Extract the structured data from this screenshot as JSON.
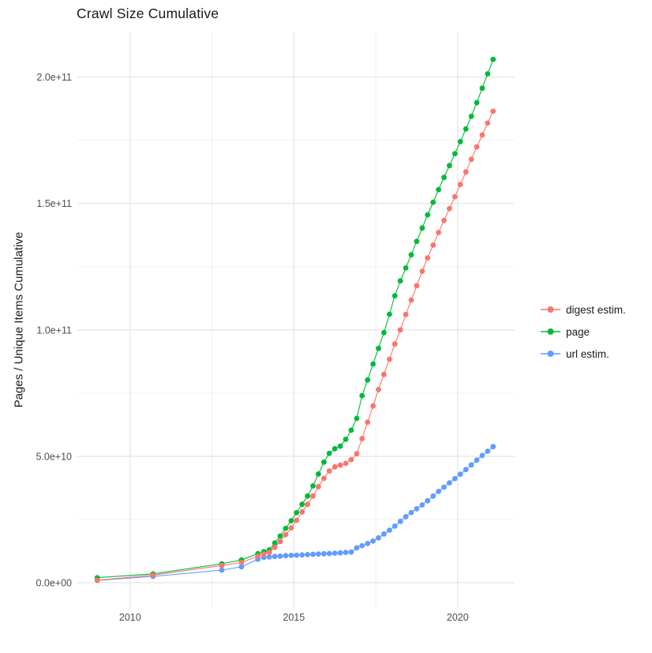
{
  "chart_data": {
    "type": "scatter",
    "title": "Crawl Size Cumulative",
    "xlabel": "",
    "ylabel": "Pages / Unique Items Cumulative",
    "x_domain": [
      2008.39,
      2021.74
    ],
    "y_domain_e9": [
      -10,
      218
    ],
    "value_unit": "items (value stored in units of 1e9)",
    "grid": "on",
    "legend_position": "right",
    "x_ticks_major": [
      {
        "v": 2010,
        "label": "2010"
      },
      {
        "v": 2015,
        "label": "2015"
      },
      {
        "v": 2020,
        "label": "2020"
      }
    ],
    "x_ticks_minor": [
      2012.5,
      2017.5
    ],
    "y_ticks_major": [
      {
        "v": 0,
        "label": "0.0e+00"
      },
      {
        "v": 50,
        "label": "5.0e+10"
      },
      {
        "v": 100,
        "label": "1.0e+11"
      },
      {
        "v": 150,
        "label": "1.5e+11"
      },
      {
        "v": 200,
        "label": "2.0e+11"
      }
    ],
    "y_ticks_minor": [
      25,
      75,
      125,
      175
    ],
    "draw_order": [
      2,
      1,
      0
    ],
    "series": [
      {
        "name": "digest estim.",
        "color": "#F8766D",
        "points": [
          [
            2009.0,
            1
          ],
          [
            2010.7,
            3
          ],
          [
            2012.8,
            6.8
          ],
          [
            2013.4,
            8
          ],
          [
            2013.9,
            10.5
          ],
          [
            2014.083,
            11.3
          ],
          [
            2014.25,
            12
          ],
          [
            2014.417,
            14
          ],
          [
            2014.583,
            16.3
          ],
          [
            2014.75,
            19
          ],
          [
            2014.917,
            21.7
          ],
          [
            2015.083,
            24.7
          ],
          [
            2015.25,
            28
          ],
          [
            2015.417,
            31
          ],
          [
            2015.583,
            34.3
          ],
          [
            2015.75,
            38
          ],
          [
            2015.917,
            41.3
          ],
          [
            2016.083,
            44.2
          ],
          [
            2016.25,
            45.8
          ],
          [
            2016.417,
            46.5
          ],
          [
            2016.583,
            47.2
          ],
          [
            2016.75,
            48.7
          ],
          [
            2016.917,
            51
          ],
          [
            2017.083,
            57
          ],
          [
            2017.25,
            63.5
          ],
          [
            2017.417,
            69.9
          ],
          [
            2017.583,
            76.4
          ],
          [
            2017.75,
            82.4
          ],
          [
            2017.917,
            88.4
          ],
          [
            2018.083,
            94.4
          ],
          [
            2018.25,
            100
          ],
          [
            2018.417,
            106.1
          ],
          [
            2018.583,
            111.8
          ],
          [
            2018.75,
            117.5
          ],
          [
            2018.917,
            123.2
          ],
          [
            2019.083,
            128.5
          ],
          [
            2019.25,
            133.5
          ],
          [
            2019.417,
            138.5
          ],
          [
            2019.583,
            143.3
          ],
          [
            2019.75,
            148
          ],
          [
            2019.917,
            152.7
          ],
          [
            2020.083,
            157.5
          ],
          [
            2020.25,
            162.5
          ],
          [
            2020.417,
            167.5
          ],
          [
            2020.583,
            172.4
          ],
          [
            2020.75,
            177.1
          ],
          [
            2020.917,
            181.8
          ],
          [
            2021.083,
            186.5
          ]
        ]
      },
      {
        "name": "page",
        "color": "#00BA38",
        "points": [
          [
            2009.0,
            2
          ],
          [
            2010.7,
            3.5
          ],
          [
            2012.8,
            7.5
          ],
          [
            2013.4,
            9
          ],
          [
            2013.9,
            11.5
          ],
          [
            2014.083,
            12.3
          ],
          [
            2014.25,
            13
          ],
          [
            2014.417,
            15.7
          ],
          [
            2014.583,
            18.5
          ],
          [
            2014.75,
            21.5
          ],
          [
            2014.917,
            24.5
          ],
          [
            2015.083,
            27.7
          ],
          [
            2015.25,
            31
          ],
          [
            2015.417,
            34.3
          ],
          [
            2015.583,
            38.3
          ],
          [
            2015.75,
            43
          ],
          [
            2015.917,
            47.7
          ],
          [
            2016.083,
            51.2
          ],
          [
            2016.25,
            53
          ],
          [
            2016.417,
            54
          ],
          [
            2016.583,
            56.7
          ],
          [
            2016.75,
            60.3
          ],
          [
            2016.917,
            65
          ],
          [
            2017.083,
            74
          ],
          [
            2017.25,
            80.2
          ],
          [
            2017.417,
            86.5
          ],
          [
            2017.583,
            92.7
          ],
          [
            2017.75,
            98.9
          ],
          [
            2017.917,
            106.2
          ],
          [
            2018.083,
            113.5
          ],
          [
            2018.25,
            119.4
          ],
          [
            2018.417,
            124.5
          ],
          [
            2018.583,
            129.7
          ],
          [
            2018.75,
            135
          ],
          [
            2018.917,
            140.3
          ],
          [
            2019.083,
            145.5
          ],
          [
            2019.25,
            150.5
          ],
          [
            2019.417,
            155.5
          ],
          [
            2019.583,
            160.3
          ],
          [
            2019.75,
            165
          ],
          [
            2019.917,
            169.7
          ],
          [
            2020.083,
            174.5
          ],
          [
            2020.25,
            179.5
          ],
          [
            2020.417,
            184.5
          ],
          [
            2020.583,
            189.9
          ],
          [
            2020.75,
            195.6
          ],
          [
            2020.917,
            201.3
          ],
          [
            2021.083,
            207
          ]
        ]
      },
      {
        "name": "url estim.",
        "color": "#619CFF",
        "points": [
          [
            2009.0,
            0.9
          ],
          [
            2010.7,
            2.5
          ],
          [
            2012.8,
            5
          ],
          [
            2013.4,
            6.3
          ],
          [
            2013.9,
            9.3
          ],
          [
            2014.083,
            10
          ],
          [
            2014.25,
            10.2
          ],
          [
            2014.417,
            10.4
          ],
          [
            2014.583,
            10.5
          ],
          [
            2014.75,
            10.7
          ],
          [
            2014.917,
            10.8
          ],
          [
            2015.083,
            10.9
          ],
          [
            2015.25,
            11
          ],
          [
            2015.417,
            11.1
          ],
          [
            2015.583,
            11.25
          ],
          [
            2015.75,
            11.35
          ],
          [
            2015.917,
            11.45
          ],
          [
            2016.083,
            11.56
          ],
          [
            2016.25,
            11.68
          ],
          [
            2016.417,
            11.8
          ],
          [
            2016.583,
            12
          ],
          [
            2016.75,
            12.1
          ],
          [
            2016.917,
            13.8
          ],
          [
            2017.083,
            14.65
          ],
          [
            2017.25,
            15.5
          ],
          [
            2017.417,
            16.5
          ],
          [
            2017.583,
            17.75
          ],
          [
            2017.75,
            19.25
          ],
          [
            2017.917,
            20.75
          ],
          [
            2018.083,
            22.4
          ],
          [
            2018.25,
            24.25
          ],
          [
            2018.417,
            26.1
          ],
          [
            2018.583,
            27.75
          ],
          [
            2018.75,
            29.25
          ],
          [
            2018.917,
            30.75
          ],
          [
            2019.083,
            32.4
          ],
          [
            2019.25,
            34.25
          ],
          [
            2019.417,
            36.1
          ],
          [
            2019.583,
            37.8
          ],
          [
            2019.75,
            39.5
          ],
          [
            2019.917,
            41.2
          ],
          [
            2020.083,
            42.9
          ],
          [
            2020.25,
            44.75
          ],
          [
            2020.417,
            46.6
          ],
          [
            2020.583,
            48.5
          ],
          [
            2020.75,
            50.3
          ],
          [
            2020.917,
            52
          ],
          [
            2021.083,
            53.8
          ]
        ]
      }
    ]
  }
}
